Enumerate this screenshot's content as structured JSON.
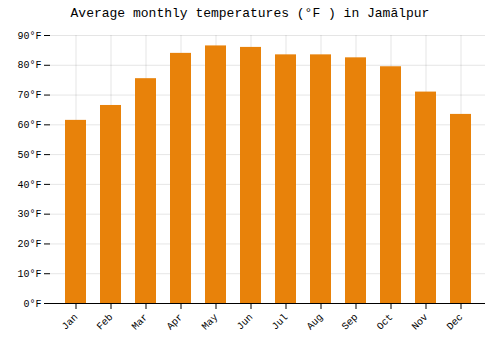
{
  "chart_data": {
    "type": "bar",
    "title": "Average monthly temperatures (°F ) in Jamālpur",
    "categories": [
      "Jan",
      "Feb",
      "Mar",
      "Apr",
      "May",
      "Jun",
      "Jul",
      "Aug",
      "Sep",
      "Oct",
      "Nov",
      "Dec"
    ],
    "values": [
      61.5,
      66.5,
      75.5,
      84.0,
      86.5,
      86.0,
      83.5,
      83.5,
      82.5,
      79.5,
      71.0,
      63.5
    ],
    "color": "#E8820A",
    "ylim": [
      0,
      90
    ],
    "yticks": [
      {
        "value": 0,
        "label": "0°F"
      },
      {
        "value": 10,
        "label": "10°F"
      },
      {
        "value": 20,
        "label": "20°F"
      },
      {
        "value": 30,
        "label": "30°F"
      },
      {
        "value": 40,
        "label": "40°F"
      },
      {
        "value": 50,
        "label": "50°F"
      },
      {
        "value": 60,
        "label": "60°F"
      },
      {
        "value": 70,
        "label": "70°F"
      },
      {
        "value": 80,
        "label": "80°F"
      },
      {
        "value": 90,
        "label": "90°F"
      }
    ],
    "grid": true
  }
}
